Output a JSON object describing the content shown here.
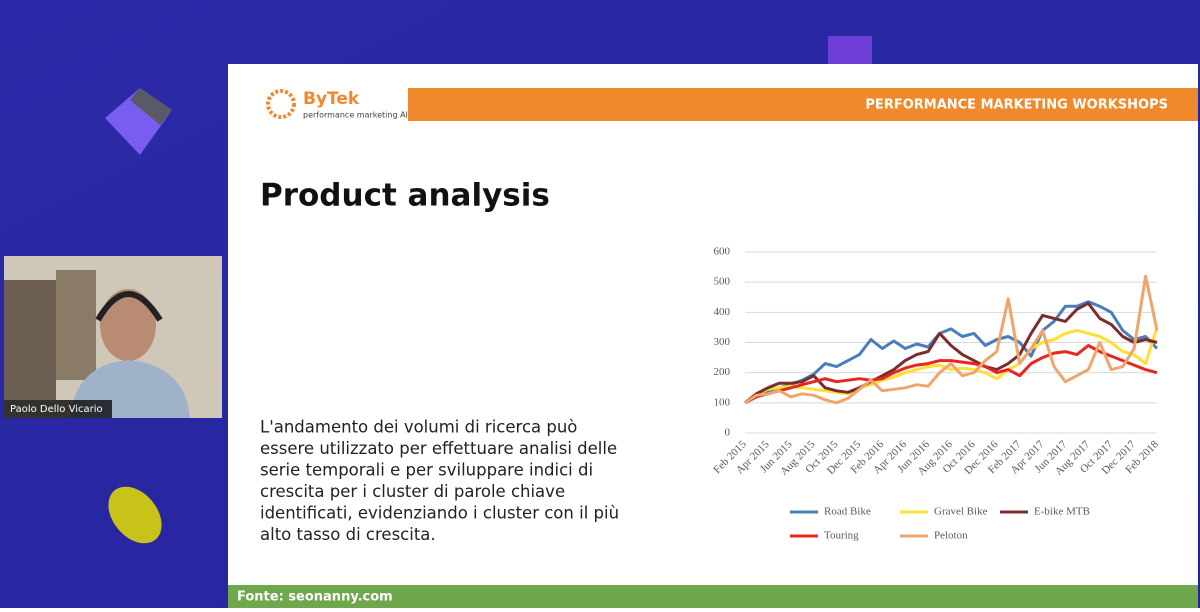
{
  "participant": {
    "name": "Paolo Dello Vicario"
  },
  "slide": {
    "logo": {
      "name": "ByTek",
      "tagline": "performance marketing AI"
    },
    "header": "PERFORMANCE MARKETING WORKSHOPS",
    "title": "Product analysis",
    "body_lines": [
      "L'andamento dei volumi di ricerca può",
      "essere utilizzato per effettuare analisi delle",
      "serie temporali e per sviluppare indici di",
      "crescita per i cluster di parole chiave",
      "identificati, evidenziando i cluster con il più",
      "alto tasso di crescita."
    ],
    "footer": "Fonte: seonanny.com"
  },
  "chart_data": {
    "type": "line",
    "categories": [
      "Feb 2015",
      null,
      "Apr 2015",
      null,
      "Jun 2015",
      null,
      "Aug 2015",
      null,
      "Oct 2015",
      null,
      "Dec 2015",
      null,
      "Feb 2016",
      null,
      "Apr 2016",
      null,
      "Jun 2016",
      null,
      "Aug 2016",
      null,
      "Oct 2016",
      null,
      "Dec 2016",
      null,
      "Feb 2017",
      null,
      "Apr 2017",
      null,
      "Jun 2017",
      null,
      "Aug 2017",
      null,
      "Oct 2017",
      null,
      "Dec 2017",
      null,
      "Feb 2018"
    ],
    "ylim": [
      0,
      600
    ],
    "yticks": [
      0,
      100,
      200,
      300,
      400,
      500,
      600
    ],
    "grid": true,
    "series": [
      {
        "name": "Road Bike",
        "color": "#4a7ebb",
        "values": [
          100,
          120,
          140,
          150,
          160,
          175,
          195,
          230,
          220,
          240,
          260,
          310,
          280,
          305,
          280,
          295,
          285,
          330,
          345,
          320,
          330,
          290,
          310,
          320,
          300,
          255,
          340,
          370,
          420,
          420,
          435,
          420,
          400,
          340,
          310,
          320,
          280
        ]
      },
      {
        "name": "Gravel Bike",
        "color": "#ffe033",
        "values": [
          100,
          130,
          145,
          150,
          155,
          150,
          145,
          140,
          135,
          130,
          150,
          160,
          175,
          185,
          200,
          210,
          220,
          225,
          210,
          215,
          210,
          200,
          180,
          210,
          230,
          280,
          300,
          310,
          330,
          340,
          330,
          320,
          300,
          270,
          260,
          230,
          350
        ]
      },
      {
        "name": "E-bike MTB",
        "color": "#7b2c2c",
        "values": [
          100,
          130,
          150,
          165,
          165,
          170,
          190,
          150,
          140,
          135,
          150,
          170,
          190,
          210,
          240,
          260,
          270,
          330,
          290,
          260,
          240,
          220,
          210,
          230,
          260,
          330,
          390,
          380,
          370,
          410,
          430,
          380,
          360,
          320,
          300,
          310,
          300
        ]
      },
      {
        "name": "Touring",
        "color": "#e8261e",
        "values": [
          100,
          120,
          130,
          140,
          150,
          160,
          170,
          180,
          170,
          175,
          180,
          175,
          180,
          200,
          215,
          225,
          230,
          240,
          240,
          235,
          230,
          220,
          200,
          210,
          190,
          230,
          250,
          265,
          270,
          260,
          290,
          270,
          255,
          240,
          225,
          210,
          200
        ]
      },
      {
        "name": "Peloton",
        "color": "#f0a56c",
        "values": [
          100,
          125,
          130,
          140,
          120,
          130,
          125,
          110,
          100,
          115,
          145,
          175,
          140,
          145,
          150,
          160,
          155,
          200,
          230,
          190,
          200,
          240,
          270,
          445,
          230,
          280,
          340,
          220,
          170,
          190,
          210,
          300,
          210,
          220,
          280,
          520,
          340
        ]
      }
    ]
  }
}
